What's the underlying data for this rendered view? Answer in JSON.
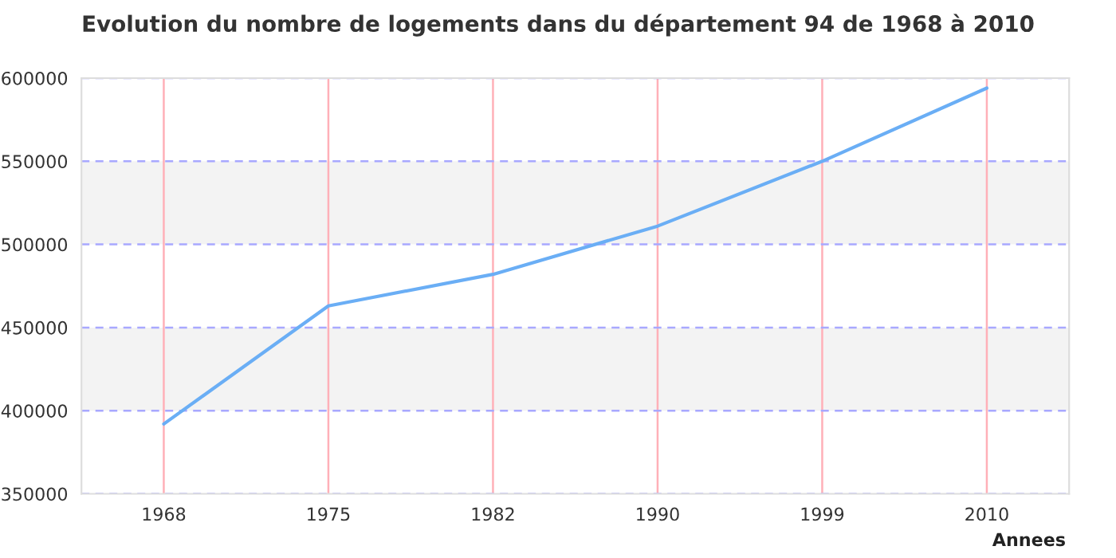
{
  "chart_data": {
    "type": "line",
    "title": "Evolution du nombre de logements dans du département 94 de 1968 à 2010",
    "xlabel": "Annees",
    "categories": [
      "1968",
      "1975",
      "1982",
      "1990",
      "1999",
      "2010"
    ],
    "series": [
      {
        "color": "#6aaef5",
        "values": [
          392000,
          463000,
          482000,
          511000,
          550000,
          594000
        ]
      }
    ],
    "ylim": [
      350000,
      600000
    ],
    "yticks": [
      350000,
      400000,
      450000,
      500000,
      550000,
      600000
    ],
    "bands": [
      {
        "axis": "y",
        "from": 400000,
        "to": 450000,
        "color": "#f3f3f3"
      },
      {
        "axis": "y",
        "from": 500000,
        "to": 550000,
        "color": "#f3f3f3"
      }
    ],
    "grid": true,
    "marker": "none",
    "line_style": "solid"
  }
}
